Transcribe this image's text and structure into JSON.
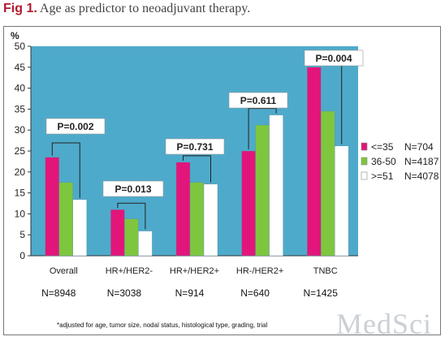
{
  "caption": {
    "label": "Fig 1.",
    "text": "Age as predictor to neoadjuvant therapy."
  },
  "footnote": "*adjusted for age, tumor size, nodal status, histological type, grading, trial",
  "watermark": "MedSci",
  "colors": {
    "plot_bg": "#4eaacb",
    "series": [
      "#e2157b",
      "#7ec63e",
      "#ffffff"
    ],
    "bracket": "#222222"
  },
  "chart_data": {
    "type": "bar",
    "ylabel": "%",
    "ylim": [
      0,
      50
    ],
    "yticks": [
      0,
      5,
      10,
      15,
      20,
      25,
      30,
      35,
      40,
      45,
      50
    ],
    "grid": false,
    "legend_position": "right",
    "categories": [
      "Overall",
      "HR+/HER2-",
      "HR+/HER2+",
      "HR-/HER2+",
      "TNBC"
    ],
    "series": [
      {
        "name": "<=35",
        "n_label": "N=704",
        "values": [
          23.5,
          11,
          22.3,
          25,
          45
        ]
      },
      {
        "name": "36-50",
        "n_label": "N=4187",
        "values": [
          17.5,
          8.8,
          17.5,
          31.2,
          34.5
        ]
      },
      {
        "name": ">=51",
        "n_label": "N=4078",
        "values": [
          13.4,
          5.9,
          17.1,
          33.6,
          26.2
        ]
      }
    ],
    "p_values": [
      "P=0.002",
      "P=0.013",
      "P=0.731",
      "P=0.611",
      "P=0.004"
    ],
    "group_n": [
      "N=8948",
      "N=3038",
      "N=914",
      "N=640",
      "N=1425"
    ]
  }
}
